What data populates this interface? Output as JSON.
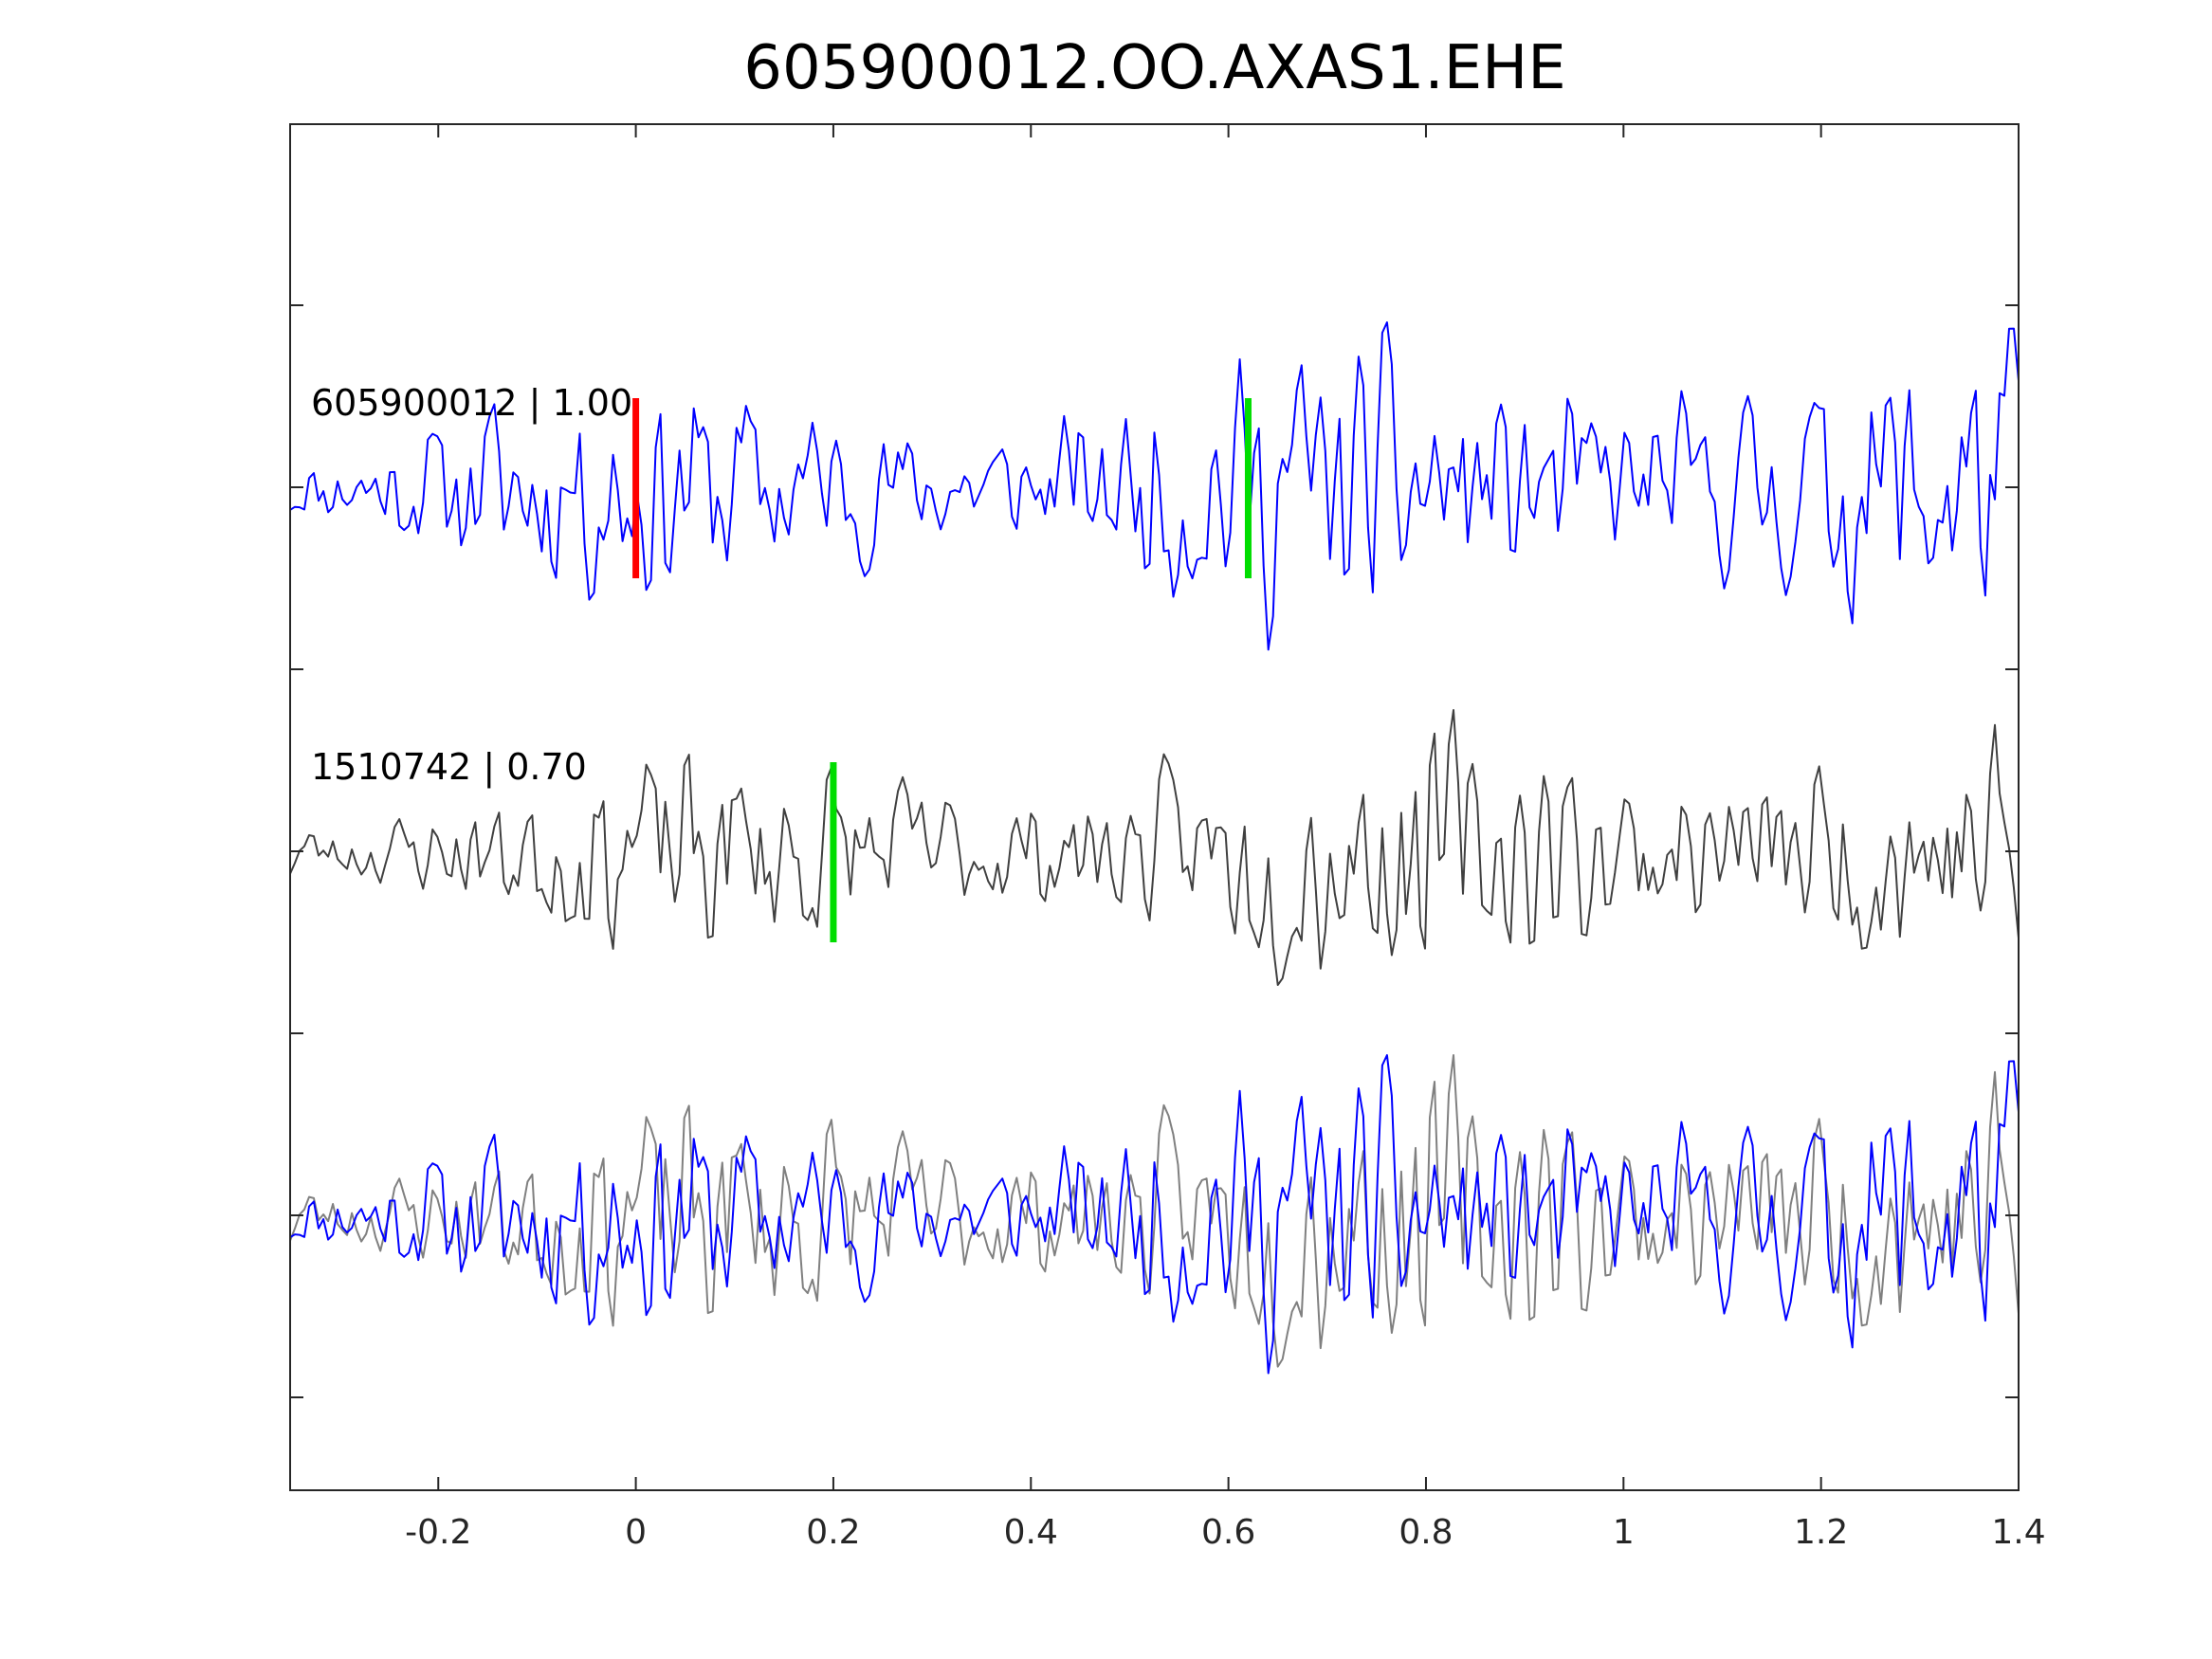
{
  "chart_data": {
    "type": "line",
    "title": "605900012.OO.AXAS1.EHE",
    "xlabel": "",
    "ylabel": "",
    "xlim": [
      -0.35,
      1.4
    ],
    "x_ticks": [
      -0.2,
      0,
      0.2,
      0.4,
      0.6,
      0.8,
      1,
      1.2,
      1.4
    ],
    "x_tick_labels": [
      "-0.2",
      "0",
      "0.2",
      "0.4",
      "0.6",
      "0.8",
      "1",
      "1.2",
      "1.4"
    ],
    "y_tick_count": 7,
    "y_tick_labels_visible": false,
    "grid": false,
    "legend": "none",
    "sample_count": 365,
    "colors": {
      "axes": "#262626",
      "trace_1": "#0000ff",
      "trace_2": "#404040",
      "overlay_blue": "#0000ff",
      "overlay_gray": "#808080",
      "pick_red": "#ff0000",
      "pick_green": "#00dd00"
    },
    "series": [
      {
        "label": "605900012 | 1.00",
        "color": "#0000ff",
        "seed": 11,
        "lag_samples": 0
      },
      {
        "label": "1510742 | 0.70",
        "color": "#404040",
        "seed": 23,
        "lag_samples": 0
      }
    ],
    "overlay": [
      {
        "source": "series.0",
        "color": "#0000ff"
      },
      {
        "source": "series.1",
        "color": "#808080"
      }
    ],
    "picks": [
      {
        "trace": 0,
        "x": 0.0,
        "color": "#ff0000"
      },
      {
        "trace": 0,
        "x": 0.62,
        "color": "#00dd00"
      },
      {
        "trace": 1,
        "x": 0.2,
        "color": "#00dd00"
      }
    ]
  }
}
